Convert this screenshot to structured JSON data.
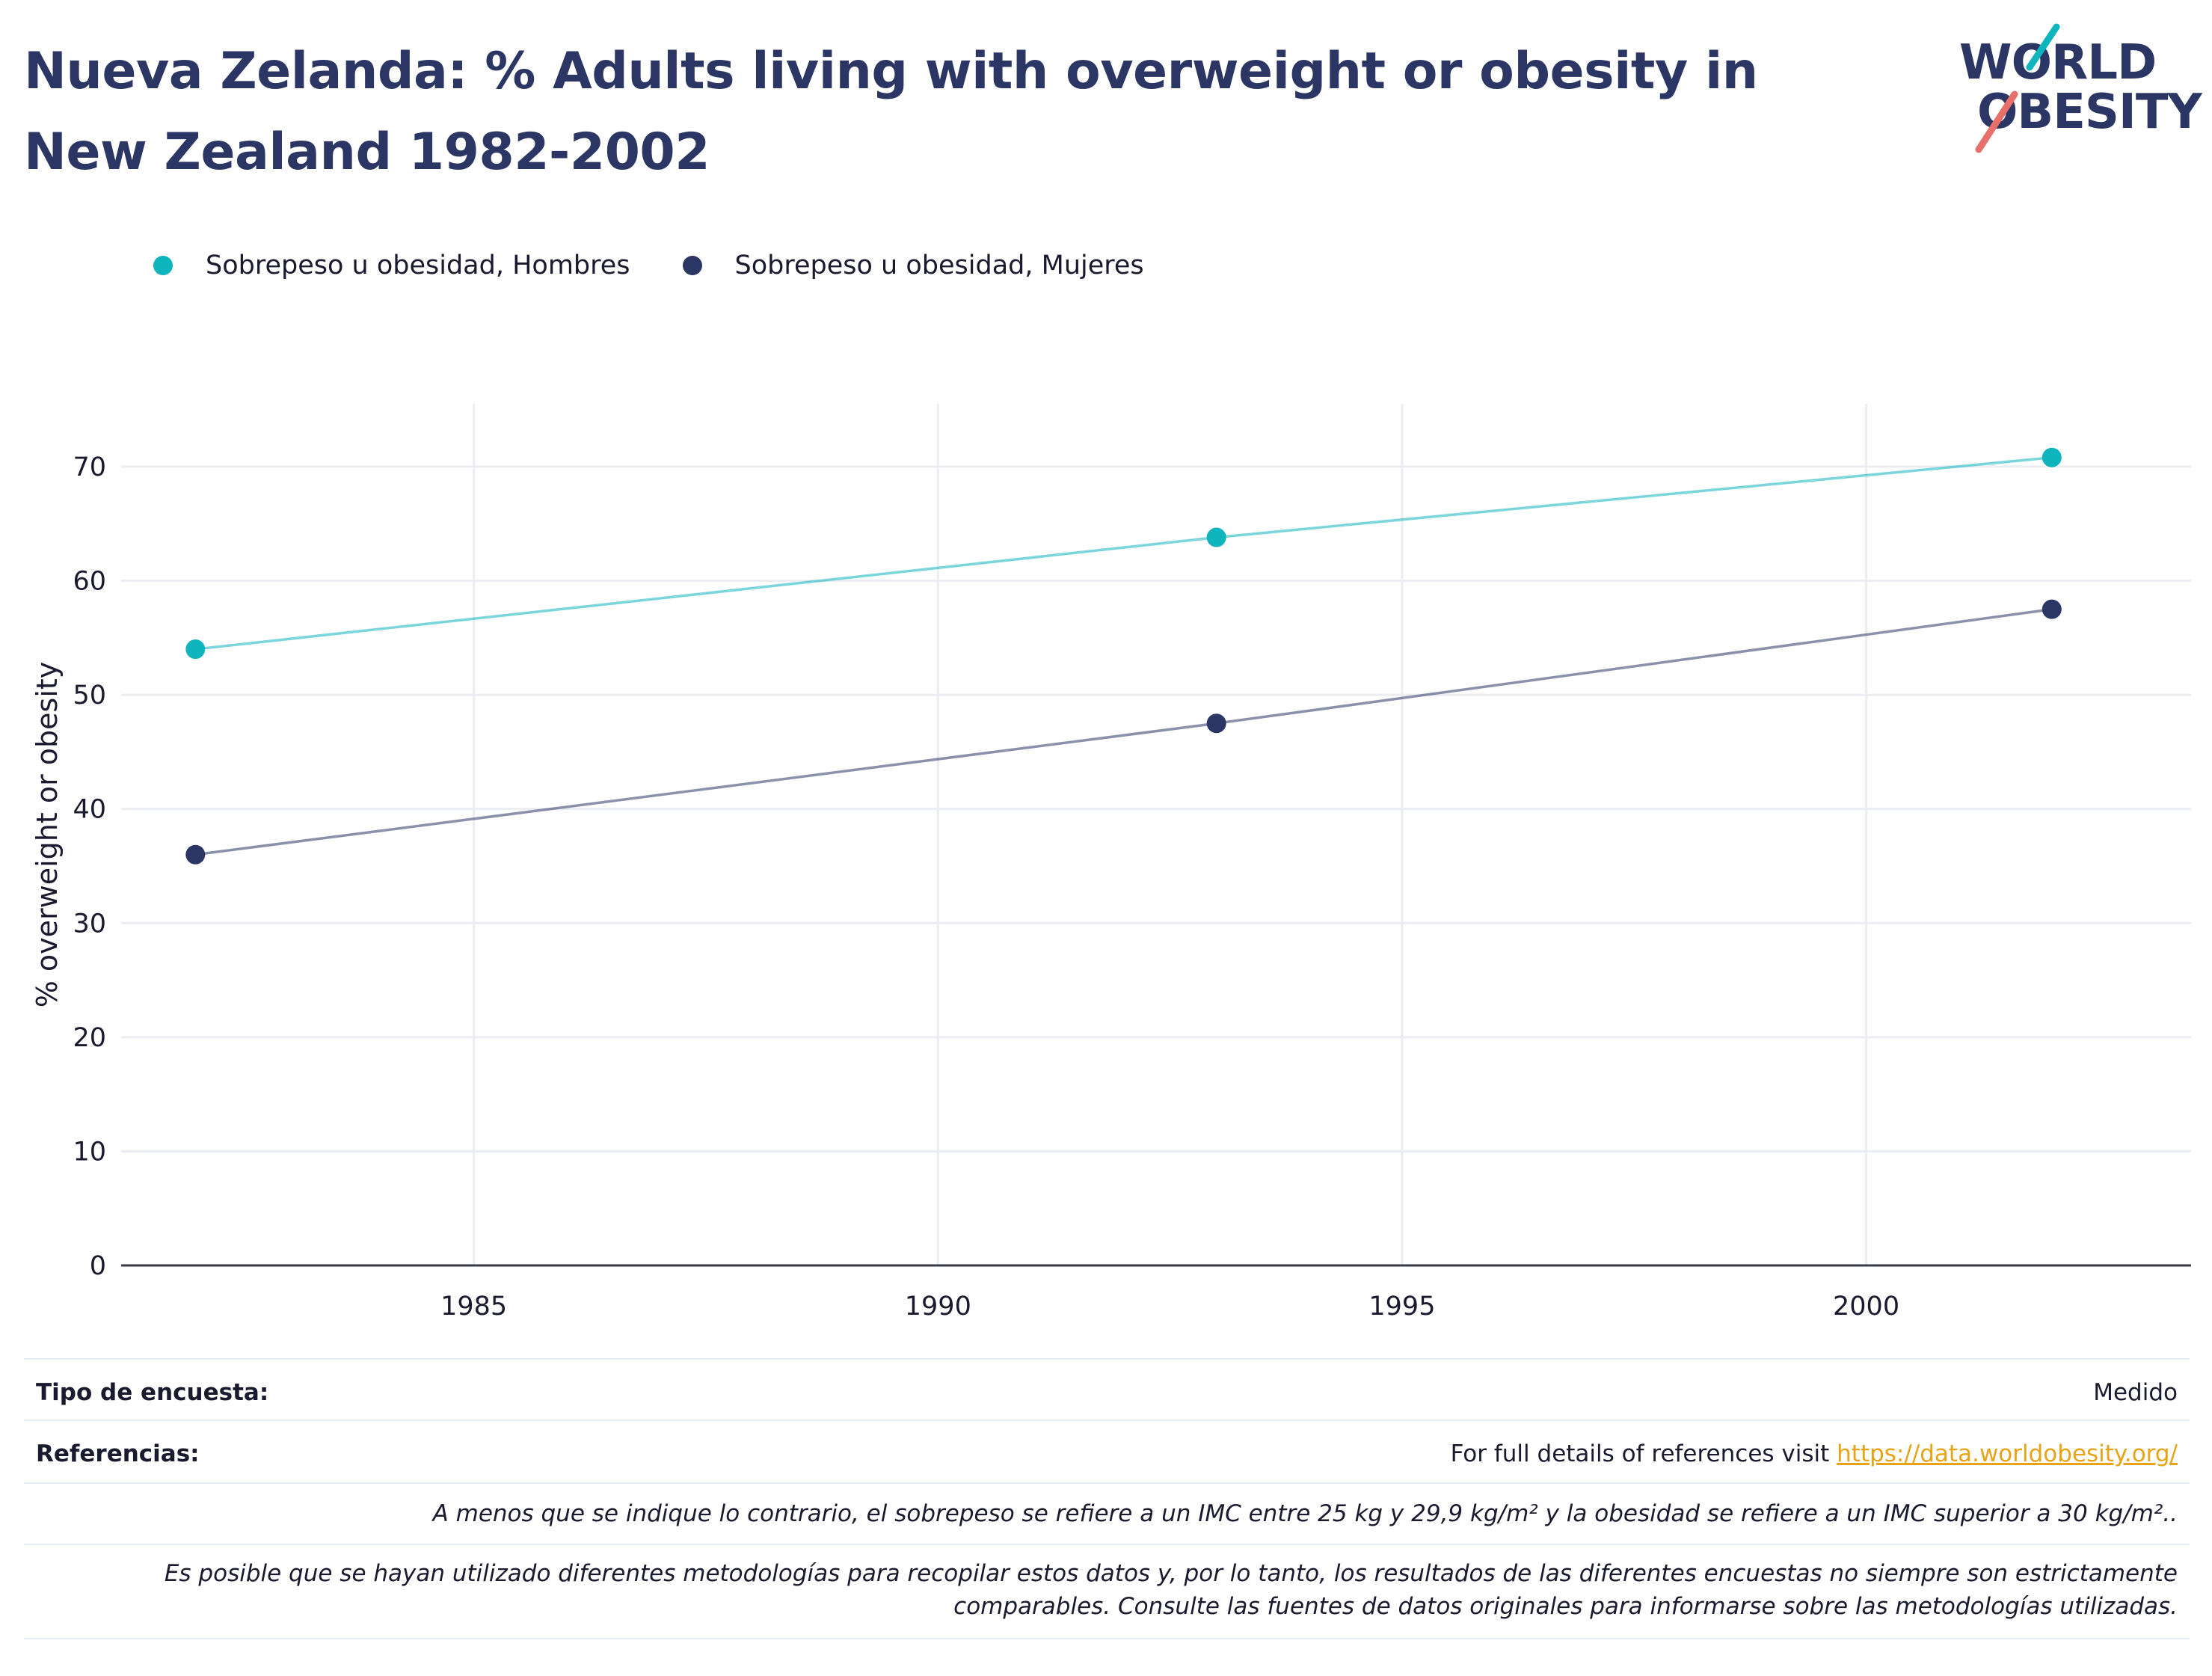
{
  "title": "Nueva Zelanda: % Adults living with overweight or obesity in New Zealand 1982-2002",
  "logo": {
    "line1": "WORLD",
    "line2": "OBESITY"
  },
  "colors": {
    "title": "#2b3664",
    "hombres": "#0fb5bd",
    "mujeres": "#2b3664",
    "link": "#e8a317",
    "grid": "#ebedf2"
  },
  "chart_data": {
    "type": "line",
    "x": [
      1982,
      1993,
      2002
    ],
    "series": [
      {
        "name": "Sobrepeso u obesidad, Hombres",
        "values": [
          54,
          63.8,
          70.8
        ],
        "color": "#0fb5bd"
      },
      {
        "name": "Sobrepeso u obesidad, Mujeres",
        "values": [
          36,
          47.5,
          57.5
        ],
        "color": "#2b3664"
      }
    ],
    "ylabel": "% overweight or obesity",
    "xlabel": "",
    "xticks": [
      1985,
      1990,
      1995,
      2000
    ],
    "yticks": [
      0,
      10,
      20,
      30,
      40,
      50,
      60,
      70
    ],
    "xlim": [
      1981.2,
      2003.5
    ],
    "ylim": [
      0,
      75.5
    ],
    "grid": true,
    "legend": "top-left"
  },
  "footer": {
    "survey_label": "Tipo de encuesta:",
    "survey_value": "Medido",
    "refs_label": "Referencias:",
    "refs_text": "For full details of references visit ",
    "refs_link": "https://data.worldobesity.org/",
    "note1": "A menos que se indique lo contrario, el sobrepeso se refiere a un IMC entre 25 kg y 29,9 kg/m² y la obesidad se refiere a un IMC superior a 30 kg/m²..",
    "note2_line1": "Es posible que se hayan utilizado diferentes metodologías para recopilar estos datos y, por lo tanto, los resultados de las diferentes encuestas no siempre son estrictamente",
    "note2_line2": "comparables. Consulte las fuentes de datos originales para informarse sobre las metodologías utilizadas."
  }
}
